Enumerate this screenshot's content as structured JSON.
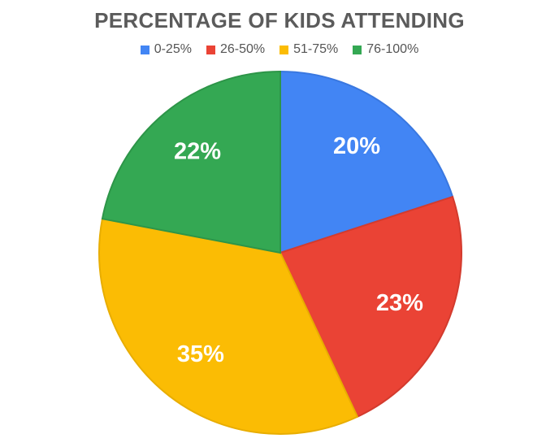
{
  "chart_data": {
    "type": "pie",
    "title": "PERCENTAGE OF KIDS ATTENDING",
    "legend_position": "top",
    "slices": [
      {
        "name": "0-25%",
        "value": 20,
        "label": "20%",
        "color": "#4285F4"
      },
      {
        "name": "26-50%",
        "value": 23,
        "label": "23%",
        "color": "#EA4335"
      },
      {
        "name": "51-75%",
        "value": 35,
        "label": "35%",
        "color": "#FBBC04"
      },
      {
        "name": "76-100%",
        "value": 22,
        "label": "22%",
        "color": "#34A853"
      }
    ]
  }
}
